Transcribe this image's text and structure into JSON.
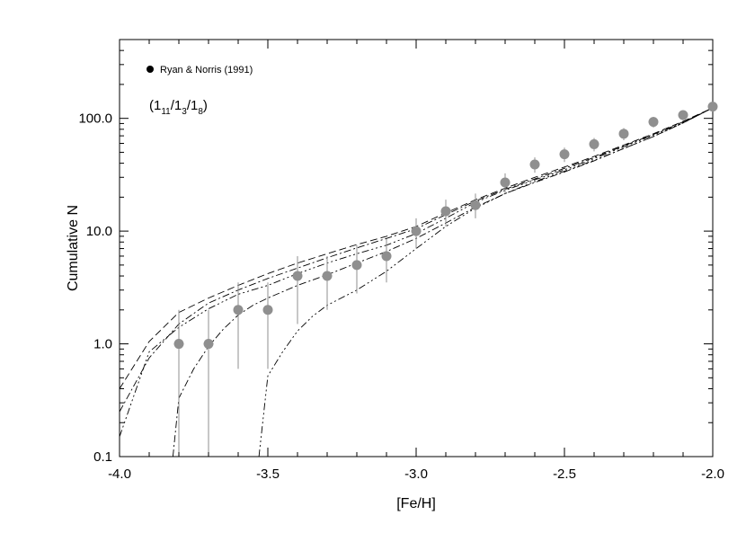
{
  "chart_data": {
    "type": "scatter",
    "xlabel": "[Fe/H]",
    "ylabel": "Cumulative N",
    "xlim": [
      -4.0,
      -2.0
    ],
    "ylim": [
      0.1,
      500
    ],
    "yscale": "log",
    "grid": false,
    "x_ticks": [
      {
        "value": -4.0,
        "label": "-4.0"
      },
      {
        "value": -3.5,
        "label": "-3.5"
      },
      {
        "value": -3.0,
        "label": "-3.0"
      },
      {
        "value": -2.5,
        "label": "-2.5"
      },
      {
        "value": -2.0,
        "label": "-2.0"
      }
    ],
    "y_ticks": [
      {
        "value": 0.1,
        "label": "0.1"
      },
      {
        "value": 1.0,
        "label": "1.0"
      },
      {
        "value": 10.0,
        "label": "10.0"
      },
      {
        "value": 100.0,
        "label": "100.0"
      }
    ],
    "legend": {
      "position": "top-left",
      "label": "Ryan & Norris (1991)"
    },
    "annotation": {
      "open": "(1",
      "sub1": "11",
      "sep1": "/1",
      "sub2": "3",
      "sep2": "/1",
      "sub3": "8",
      "close": ")"
    },
    "points": {
      "color": "#8f8f8f",
      "x": [
        -3.8,
        -3.7,
        -3.6,
        -3.5,
        -3.4,
        -3.3,
        -3.2,
        -3.1,
        -3.0,
        -2.9,
        -2.8,
        -2.7,
        -2.6,
        -2.5,
        -2.4,
        -2.3,
        -2.2,
        -2.1,
        -2.0
      ],
      "y": [
        1,
        1,
        2,
        2,
        4,
        4,
        5,
        6,
        10,
        15,
        17,
        27,
        39,
        48,
        59,
        73,
        93,
        107,
        127
      ],
      "err_low": [
        0.08,
        0.08,
        0.6,
        0.6,
        1.5,
        2.0,
        2.8,
        3.5,
        7.0,
        11.0,
        13.0,
        21.5,
        33.0,
        41.0,
        51.0,
        64.0,
        83.0,
        96.0,
        115.0
      ],
      "err_high": [
        2.0,
        2.0,
        3.5,
        3.5,
        6.0,
        6.0,
        7.5,
        8.5,
        13.0,
        19.0,
        21.5,
        32.5,
        45.0,
        55.0,
        67.0,
        82.0,
        103.0,
        118.0,
        139.0
      ]
    },
    "series": [
      {
        "dash": "8,4",
        "x": [
          -4.0,
          -3.9,
          -3.8,
          -3.7,
          -3.6,
          -3.5,
          -3.4,
          -3.3,
          -3.2,
          -3.1,
          -3.0,
          -2.9,
          -2.8,
          -2.7,
          -2.6,
          -2.5,
          -2.4,
          -2.3,
          -2.2,
          -2.1,
          -2.0
        ],
        "y": [
          0.4,
          1.05,
          1.9,
          2.55,
          3.3,
          4.2,
          5.2,
          6.3,
          7.6,
          9.0,
          11.0,
          14.5,
          19.0,
          24.0,
          30.0,
          37.0,
          46.0,
          58.0,
          73.0,
          94.0,
          124.0
        ]
      },
      {
        "dash": "8,3,2,3",
        "x": [
          -4.0,
          -3.9,
          -3.8,
          -3.7,
          -3.6,
          -3.5,
          -3.4,
          -3.3,
          -3.2,
          -3.1,
          -3.0,
          -2.9,
          -2.8,
          -2.7,
          -2.6,
          -2.5,
          -2.4,
          -2.3,
          -2.2,
          -2.1,
          -2.0
        ],
        "y": [
          0.25,
          0.75,
          1.5,
          2.3,
          3.0,
          3.8,
          4.7,
          5.8,
          7.1,
          8.6,
          10.5,
          14.0,
          18.5,
          23.5,
          29.0,
          36.0,
          45.0,
          57.0,
          72.0,
          93.0,
          124.0
        ]
      },
      {
        "dash": "8,3,2,3,2,3,2,3",
        "x": [
          -4.0,
          -3.9,
          -3.8,
          -3.7,
          -3.6,
          -3.5,
          -3.4,
          -3.3,
          -3.2,
          -3.1,
          -3.0,
          -2.9,
          -2.8,
          -2.7,
          -2.6,
          -2.5,
          -2.4,
          -2.3,
          -2.2,
          -2.1,
          -2.0
        ],
        "y": [
          0.15,
          0.85,
          1.4,
          2.05,
          2.75,
          3.3,
          4.2,
          5.2,
          6.3,
          7.5,
          9.5,
          13.0,
          18.0,
          23.0,
          28.5,
          35.0,
          44.0,
          56.0,
          71.0,
          92.0,
          124.0
        ]
      },
      {
        "dash": "8,3,2,3",
        "x": [
          -3.82,
          -3.8,
          -3.75,
          -3.7,
          -3.65,
          -3.6,
          -3.55,
          -3.5,
          -3.45,
          -3.4,
          -3.3,
          -3.2,
          -3.1,
          -3.0,
          -2.9,
          -2.8,
          -2.7,
          -2.6,
          -2.5,
          -2.4,
          -2.3,
          -2.2,
          -2.1,
          -2.0
        ],
        "y": [
          0.1,
          0.33,
          0.6,
          0.95,
          1.35,
          1.8,
          2.2,
          2.55,
          2.9,
          3.3,
          4.1,
          5.2,
          6.6,
          8.6,
          11.8,
          16.3,
          21.5,
          27.0,
          33.5,
          42.0,
          54.0,
          69.0,
          91.0,
          124.0
        ]
      },
      {
        "dash": "8,3,2,3,2,3,2,3",
        "x": [
          -3.53,
          -3.5,
          -3.45,
          -3.4,
          -3.35,
          -3.3,
          -3.2,
          -3.1,
          -3.0,
          -2.9,
          -2.8,
          -2.7,
          -2.6,
          -2.5,
          -2.4,
          -2.3,
          -2.2,
          -2.1,
          -2.0
        ],
        "y": [
          0.1,
          0.52,
          0.85,
          1.3,
          1.75,
          2.2,
          3.0,
          4.4,
          7.0,
          11.0,
          16.0,
          21.5,
          27.5,
          34.0,
          42.5,
          54.0,
          69.0,
          91.0,
          124.0
        ]
      }
    ]
  }
}
